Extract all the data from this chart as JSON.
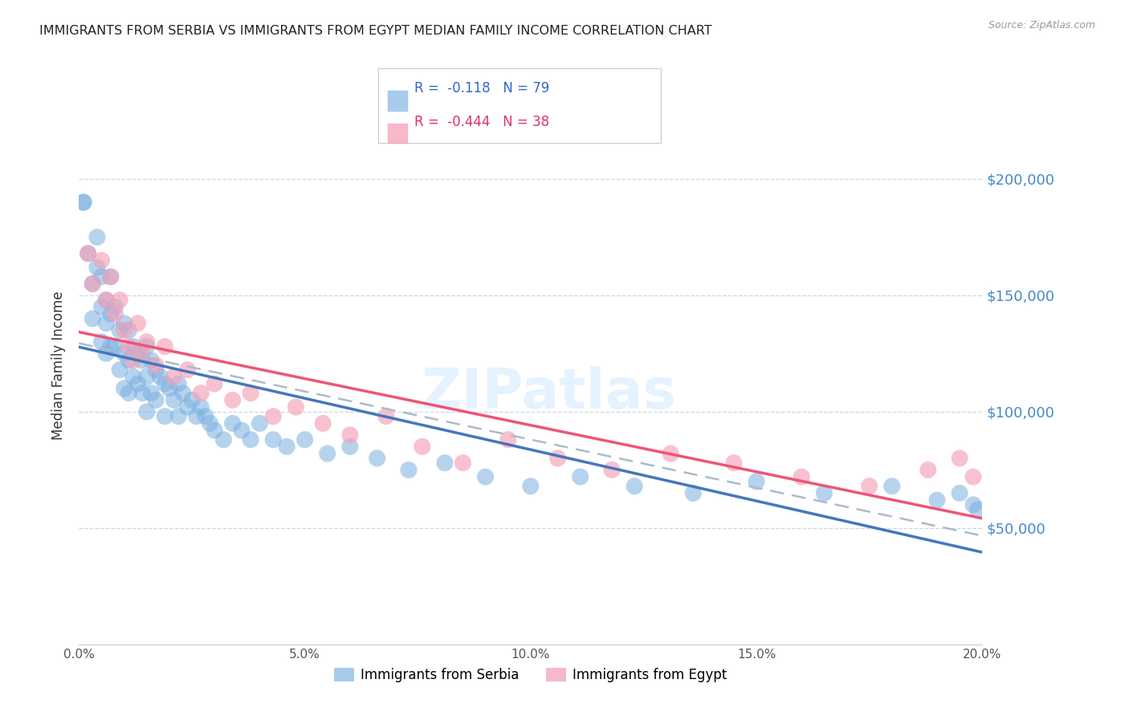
{
  "title": "IMMIGRANTS FROM SERBIA VS IMMIGRANTS FROM EGYPT MEDIAN FAMILY INCOME CORRELATION CHART",
  "source": "Source: ZipAtlas.com",
  "ylabel": "Median Family Income",
  "xlim": [
    0.0,
    0.2
  ],
  "ylim": [
    0,
    240000
  ],
  "serbia_color": "#7ab0e0",
  "egypt_color": "#f5a0b8",
  "serbia_line_color": "#4477bb",
  "egypt_line_color": "#ee5577",
  "dashed_line_color": "#aabbcc",
  "background_color": "#ffffff",
  "grid_color": "#c8d8e8",
  "serbia_R": -0.118,
  "serbia_N": 79,
  "egypt_R": -0.444,
  "egypt_N": 38,
  "serbia_x": [
    0.001,
    0.001,
    0.002,
    0.003,
    0.003,
    0.004,
    0.004,
    0.005,
    0.005,
    0.005,
    0.006,
    0.006,
    0.006,
    0.007,
    0.007,
    0.007,
    0.008,
    0.008,
    0.009,
    0.009,
    0.01,
    0.01,
    0.01,
    0.011,
    0.011,
    0.011,
    0.012,
    0.012,
    0.013,
    0.013,
    0.014,
    0.014,
    0.015,
    0.015,
    0.015,
    0.016,
    0.016,
    0.017,
    0.017,
    0.018,
    0.019,
    0.019,
    0.02,
    0.021,
    0.022,
    0.022,
    0.023,
    0.024,
    0.025,
    0.026,
    0.027,
    0.028,
    0.029,
    0.03,
    0.032,
    0.034,
    0.036,
    0.038,
    0.04,
    0.043,
    0.046,
    0.05,
    0.055,
    0.06,
    0.066,
    0.073,
    0.081,
    0.09,
    0.1,
    0.111,
    0.123,
    0.136,
    0.15,
    0.165,
    0.18,
    0.19,
    0.195,
    0.198,
    0.199
  ],
  "serbia_y": [
    190000,
    190000,
    168000,
    155000,
    140000,
    175000,
    162000,
    158000,
    145000,
    130000,
    148000,
    138000,
    125000,
    158000,
    142000,
    128000,
    145000,
    128000,
    135000,
    118000,
    138000,
    125000,
    110000,
    135000,
    122000,
    108000,
    128000,
    115000,
    125000,
    112000,
    122000,
    108000,
    128000,
    115000,
    100000,
    122000,
    108000,
    118000,
    105000,
    115000,
    112000,
    98000,
    110000,
    105000,
    112000,
    98000,
    108000,
    102000,
    105000,
    98000,
    102000,
    98000,
    95000,
    92000,
    88000,
    95000,
    92000,
    88000,
    95000,
    88000,
    85000,
    88000,
    82000,
    85000,
    80000,
    75000,
    78000,
    72000,
    68000,
    72000,
    68000,
    65000,
    70000,
    65000,
    68000,
    62000,
    65000,
    60000,
    58000
  ],
  "egypt_x": [
    0.002,
    0.003,
    0.005,
    0.006,
    0.007,
    0.008,
    0.009,
    0.01,
    0.011,
    0.012,
    0.013,
    0.014,
    0.015,
    0.017,
    0.019,
    0.021,
    0.024,
    0.027,
    0.03,
    0.034,
    0.038,
    0.043,
    0.048,
    0.054,
    0.06,
    0.068,
    0.076,
    0.085,
    0.095,
    0.106,
    0.118,
    0.131,
    0.145,
    0.16,
    0.175,
    0.188,
    0.195,
    0.198
  ],
  "egypt_y": [
    168000,
    155000,
    165000,
    148000,
    158000,
    142000,
    148000,
    135000,
    128000,
    122000,
    138000,
    125000,
    130000,
    120000,
    128000,
    115000,
    118000,
    108000,
    112000,
    105000,
    108000,
    98000,
    102000,
    95000,
    90000,
    98000,
    85000,
    78000,
    88000,
    80000,
    75000,
    82000,
    78000,
    72000,
    68000,
    75000,
    80000,
    72000
  ]
}
